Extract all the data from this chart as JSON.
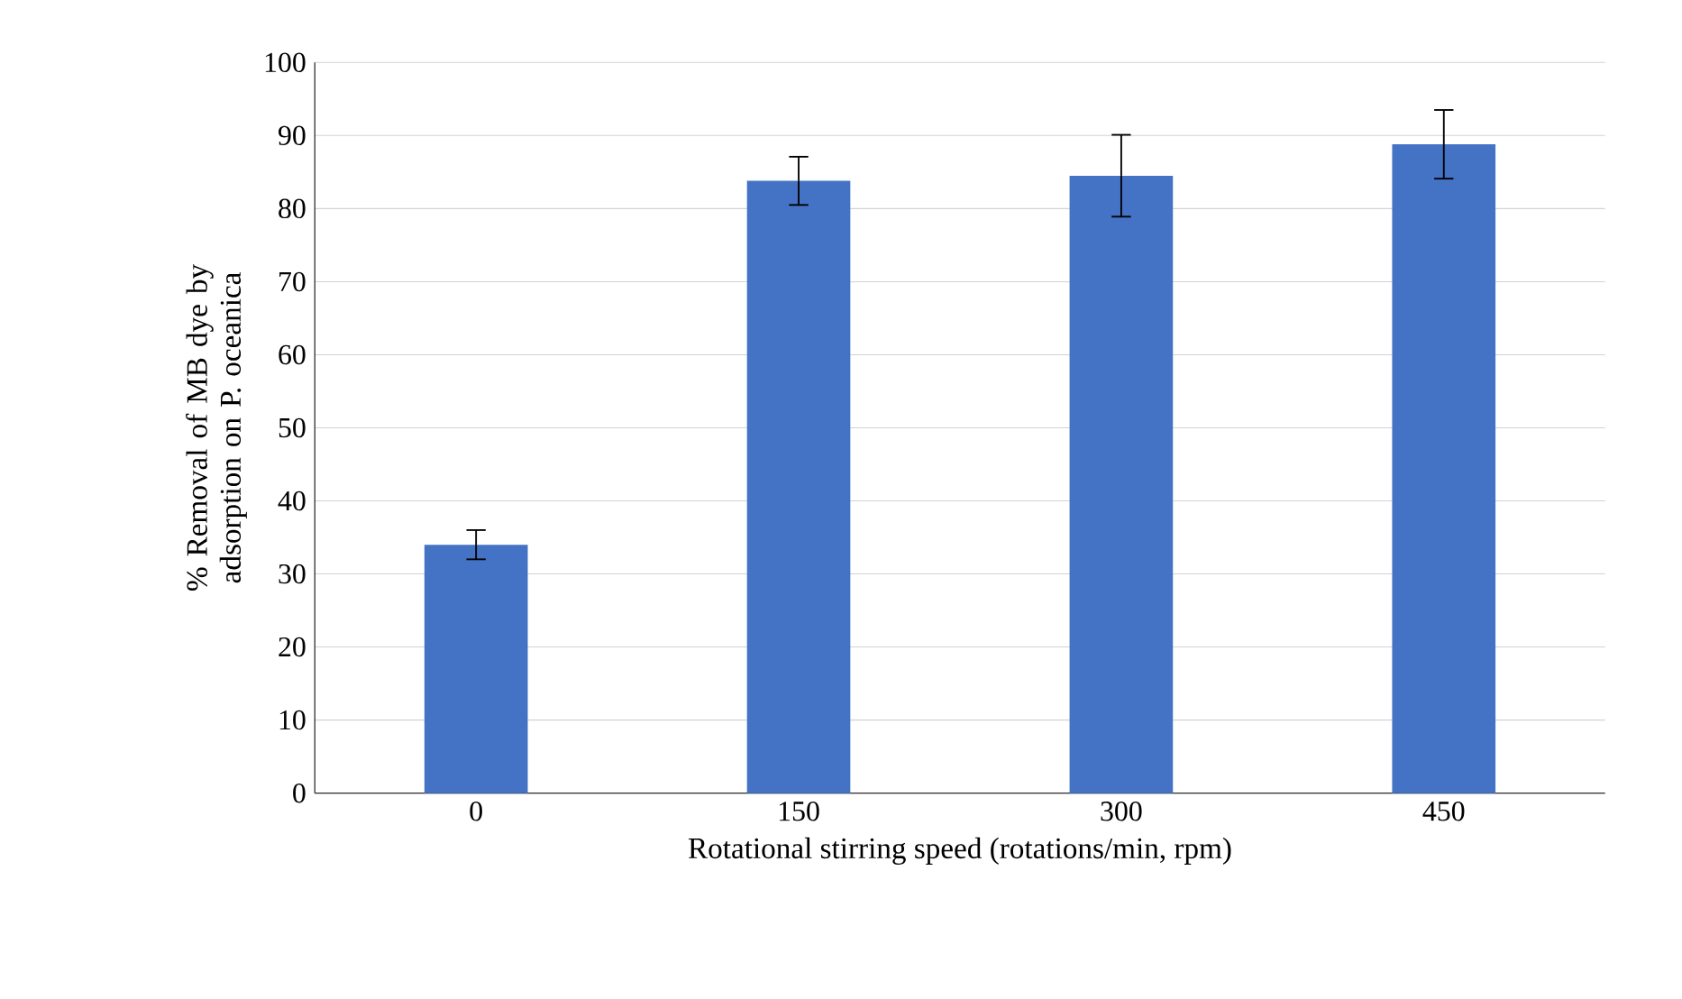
{
  "chart_data": {
    "type": "bar",
    "xlabel": "Rotational stirring speed (rotations/min, rpm)",
    "ylabel": "% Removal of MB dye by adsorption on P. oceanica",
    "categories": [
      "0",
      "150",
      "300",
      "450"
    ],
    "values": [
      34,
      83.8,
      84.5,
      88.8
    ],
    "errors": [
      2,
      3.3,
      5.6,
      4.7
    ],
    "color": "#4472c4",
    "ylim": [
      0,
      100
    ],
    "yticks": [
      0,
      10,
      20,
      30,
      40,
      50,
      60,
      70,
      80,
      90,
      100
    ],
    "grid": "y"
  }
}
